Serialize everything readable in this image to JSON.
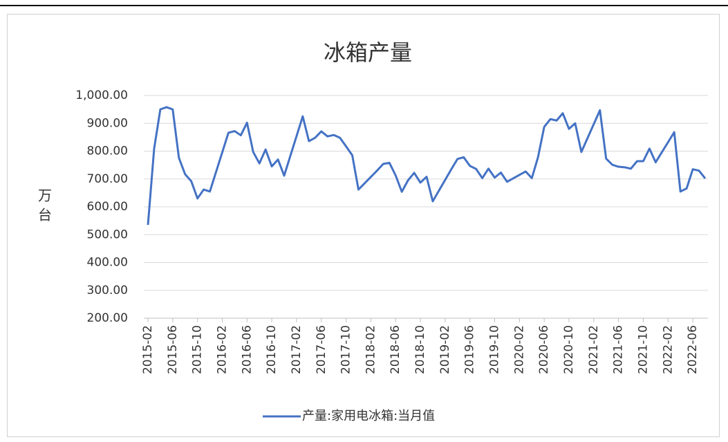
{
  "chart_data": {
    "type": "line",
    "title": "冰箱产量",
    "y_label": "万台",
    "x": [
      "2015-02",
      "2015-03",
      "2015-04",
      "2015-05",
      "2015-06",
      "2015-07",
      "2015-08",
      "2015-09",
      "2015-10",
      "2015-11",
      "2015-12",
      "2016-03",
      "2016-04",
      "2016-05",
      "2016-06",
      "2016-07",
      "2016-08",
      "2016-09",
      "2016-10",
      "2016-11",
      "2016-12",
      "2017-03",
      "2017-04",
      "2017-05",
      "2017-06",
      "2017-07",
      "2017-08",
      "2017-09",
      "2017-10",
      "2017-11",
      "2017-12",
      "2018-03",
      "2018-04",
      "2018-05",
      "2018-06",
      "2018-07",
      "2018-08",
      "2018-09",
      "2018-10",
      "2018-11",
      "2018-12",
      "2019-03",
      "2019-04",
      "2019-05",
      "2019-06",
      "2019-07",
      "2019-08",
      "2019-09",
      "2019-10",
      "2019-11",
      "2019-12",
      "2020-03",
      "2020-04",
      "2020-05",
      "2020-06",
      "2020-07",
      "2020-08",
      "2020-09",
      "2020-10",
      "2020-11",
      "2020-12",
      "2021-03",
      "2021-04",
      "2021-05",
      "2021-06",
      "2021-07",
      "2021-08",
      "2021-09",
      "2021-10",
      "2021-11",
      "2021-12",
      "2022-03",
      "2022-04",
      "2022-05",
      "2022-06",
      "2022-07",
      "2022-08"
    ],
    "series": [
      {
        "name": "产量:家用电冰箱:当月值",
        "color": "#4472c4",
        "values": [
          535,
          809,
          950,
          958,
          950,
          776,
          717,
          692,
          630,
          662,
          655,
          866,
          872,
          857,
          902,
          797,
          756,
          806,
          745,
          770,
          712,
          925,
          836,
          848,
          871,
          853,
          858,
          848,
          817,
          785,
          662,
          730,
          754,
          758,
          713,
          654,
          695,
          722,
          687,
          708,
          620,
          735,
          772,
          778,
          747,
          736,
          703,
          737,
          705,
          723,
          690,
          727,
          703,
          778,
          887,
          915,
          910,
          936,
          880,
          900,
          797,
          947,
          773,
          751,
          744,
          742,
          737,
          764,
          764,
          809,
          760,
          868,
          655,
          666,
          735,
          730,
          702
        ]
      }
    ],
    "xlim": [
      "2015-02",
      "2022-08"
    ],
    "xticks": [
      "2015-02",
      "2015-06",
      "2015-10",
      "2016-02",
      "2016-06",
      "2016-10",
      "2017-02",
      "2017-06",
      "2017-10",
      "2018-02",
      "2018-06",
      "2018-10",
      "2019-02",
      "2019-06",
      "2019-10",
      "2020-02",
      "2020-06",
      "2020-10",
      "2021-02",
      "2021-06",
      "2021-10",
      "2022-02",
      "2022-06"
    ],
    "ylim": [
      200,
      1000
    ],
    "yticks": [
      {
        "value": 200,
        "label": "200.00"
      },
      {
        "value": 300,
        "label": "300.00"
      },
      {
        "value": 400,
        "label": "400.00"
      },
      {
        "value": 500,
        "label": "500.00"
      },
      {
        "value": 600,
        "label": "600.00"
      },
      {
        "value": 700,
        "label": "700.00"
      },
      {
        "value": 800,
        "label": "800.00"
      },
      {
        "value": 900,
        "label": "900.00"
      },
      {
        "value": 1000,
        "label": "1,000.00"
      }
    ],
    "grid": true,
    "legend": "bottom"
  }
}
